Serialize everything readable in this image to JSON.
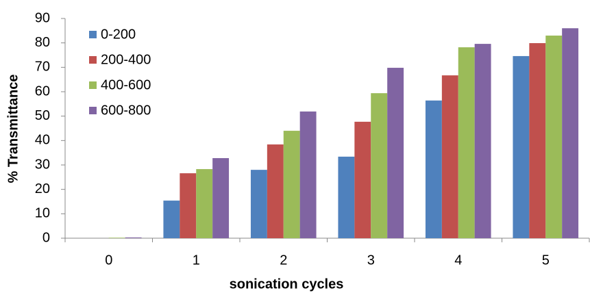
{
  "chart_data": {
    "type": "bar",
    "x_label": "sonication cycles",
    "y_label": "% Transmittance",
    "categories": [
      "0",
      "1",
      "2",
      "3",
      "4",
      "5"
    ],
    "series": [
      {
        "name": "0-200",
        "color": "#4f81bd",
        "values": [
          0,
          15.4,
          28,
          33.4,
          56.4,
          74.6
        ]
      },
      {
        "name": "200-400",
        "color": "#c0504d",
        "values": [
          0,
          26.6,
          38.4,
          47.7,
          66.7,
          79.9
        ]
      },
      {
        "name": "400-600",
        "color": "#9bbb59",
        "values": [
          0.2,
          28.3,
          44,
          59.4,
          78.2,
          83
        ]
      },
      {
        "name": "600-800",
        "color": "#8064a2",
        "values": [
          0.3,
          32.8,
          51.9,
          69.8,
          79.6,
          86
        ]
      }
    ],
    "ylim": [
      0,
      90
    ],
    "yticks": [
      0,
      10,
      20,
      30,
      40,
      50,
      60,
      70,
      80,
      90
    ],
    "grid": false,
    "legend_position": "upper left"
  }
}
